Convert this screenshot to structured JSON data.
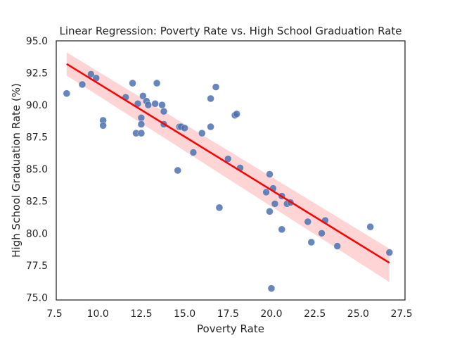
{
  "chart_data": {
    "type": "scatter",
    "title": "Linear Regression: Poverty Rate vs. High School Graduation Rate",
    "xlabel": "Poverty Rate",
    "ylabel": "High School Graduation Rate (%)",
    "xlim": [
      7.6,
      27.7
    ],
    "ylim": [
      74.8,
      95.0
    ],
    "xticks": [
      "7.5",
      "10.0",
      "12.5",
      "15.0",
      "17.5",
      "20.0",
      "22.5",
      "25.0",
      "27.5"
    ],
    "yticks": [
      "75.0",
      "77.5",
      "80.0",
      "82.5",
      "85.0",
      "87.5",
      "90.0",
      "92.5",
      "95.0"
    ],
    "grid": false,
    "colors": {
      "points": "#4c72b0",
      "regression_line": "#ff0000",
      "confidence_band": "#ffcccc"
    },
    "series": [
      {
        "x": [
          8.2,
          9.1,
          9.6,
          9.9,
          10.3,
          10.3,
          11.6,
          12.0,
          12.2,
          12.3,
          12.5,
          12.5,
          12.5,
          12.6,
          12.8,
          12.9,
          13.3,
          13.4,
          13.7,
          13.8,
          13.8,
          14.6,
          14.7,
          14.8,
          15.0,
          15.5,
          16.0,
          16.5,
          16.5,
          16.8,
          17.0,
          17.5,
          17.9,
          18.0,
          18.2,
          19.7,
          19.9,
          19.9,
          20.0,
          20.1,
          20.2,
          20.6,
          20.6,
          20.9,
          21.1,
          22.1,
          22.3,
          22.9,
          23.1,
          23.8,
          25.7,
          26.8
        ],
        "y": [
          90.9,
          91.6,
          92.4,
          92.1,
          88.8,
          88.4,
          90.6,
          91.7,
          87.8,
          90.1,
          89.0,
          88.5,
          87.8,
          90.7,
          90.3,
          90.0,
          90.1,
          91.7,
          90.0,
          89.5,
          88.5,
          84.9,
          88.3,
          88.3,
          88.2,
          86.3,
          87.8,
          90.5,
          88.3,
          91.4,
          82.0,
          85.8,
          89.2,
          89.3,
          85.1,
          83.2,
          84.6,
          81.7,
          75.7,
          83.5,
          82.3,
          82.9,
          80.3,
          82.3,
          82.4,
          80.9,
          79.3,
          80.0,
          81.0,
          79.0,
          80.5,
          78.5
        ]
      }
    ],
    "regression": {
      "x": [
        8.2,
        26.8
      ],
      "y": [
        93.2,
        77.7
      ],
      "band_upper": [
        94.1,
        78.8
      ],
      "band_lower": [
        92.3,
        76.2
      ]
    }
  }
}
